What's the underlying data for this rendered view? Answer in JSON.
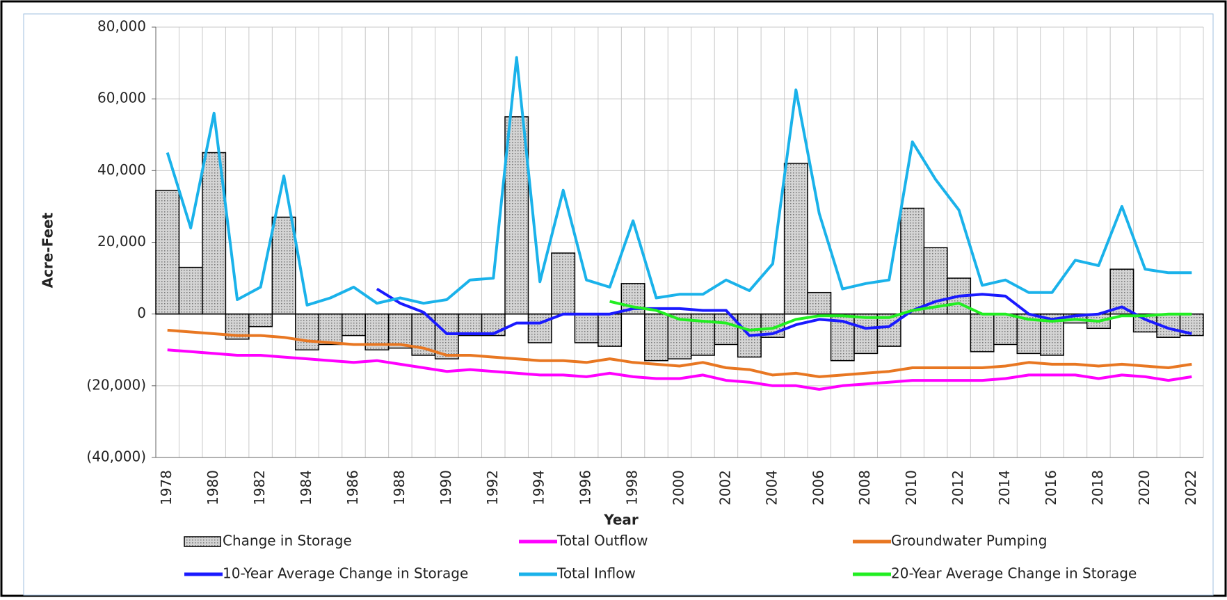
{
  "chart_data": {
    "type": "bar",
    "y_label": "Acre-Feet",
    "x_label": "Year",
    "categories": [
      "1978",
      null,
      "1980",
      null,
      "1982",
      null,
      "1984",
      null,
      "1986",
      null,
      "1988",
      null,
      "1990",
      null,
      "1992",
      null,
      "1994",
      null,
      "1996",
      null,
      "1998",
      null,
      "2000",
      null,
      "2002",
      null,
      "2004",
      null,
      "2006",
      null,
      "2008",
      null,
      "2010",
      null,
      "2012",
      null,
      "2014",
      null,
      "2016",
      null,
      "2018",
      null,
      "2020",
      null,
      "2022"
    ],
    "ylim": [
      -40000,
      80000
    ],
    "yticks": [
      {
        "value": -40000,
        "label": "(40,000)"
      },
      {
        "value": -20000,
        "label": "(20,000)"
      },
      0,
      {
        "value": 20000,
        "label": "20,000"
      },
      {
        "value": 40000,
        "label": "40,000"
      },
      {
        "value": 60000,
        "label": "60,000"
      },
      {
        "value": 80000,
        "label": "80,000"
      }
    ],
    "grid": true,
    "series": [
      {
        "name": "Change in Storage",
        "type": "bar",
        "color": "#c0c0c0",
        "values": [
          34500,
          13000,
          45000,
          -7000,
          -3500,
          27000,
          -10000,
          -8500,
          -6000,
          -10000,
          -9500,
          -11500,
          -12500,
          -6000,
          -6000,
          55000,
          -8000,
          17000,
          -8000,
          -9000,
          8500,
          -13000,
          -12500,
          -11500,
          -8500,
          -12000,
          -6500,
          42000,
          6000,
          -13000,
          -11000,
          -9000,
          29500,
          18500,
          10000,
          -10500,
          -8500,
          -11000,
          -11500,
          -2500,
          -4000,
          12500,
          -5000,
          -6500,
          -6000
        ]
      },
      {
        "name": "Total Outflow",
        "type": "line",
        "color": "#ff00ff",
        "values": [
          -10000,
          -10500,
          -11000,
          -11500,
          -11500,
          -12000,
          -12500,
          -13000,
          -13500,
          -13000,
          -14000,
          -15000,
          -16000,
          -15500,
          -16000,
          -16500,
          -17000,
          -17000,
          -17500,
          -16500,
          -17500,
          -18000,
          -18000,
          -17000,
          -18500,
          -19000,
          -20000,
          -20000,
          -21000,
          -20000,
          -19500,
          -19000,
          -18500,
          -18500,
          -18500,
          -18500,
          -18000,
          -17000,
          -17000,
          -17000,
          -18000,
          -17000,
          -17500,
          -18500,
          -17500
        ]
      },
      {
        "name": "Groundwater Pumping",
        "type": "line",
        "color": "#e87722",
        "values": [
          -4500,
          -5000,
          -5500,
          -6000,
          -6000,
          -6500,
          -7500,
          -8000,
          -8500,
          -8500,
          -8500,
          -9500,
          -11500,
          -11500,
          -12000,
          -12500,
          -13000,
          -13000,
          -13500,
          -12500,
          -13500,
          -14000,
          -14500,
          -13500,
          -15000,
          -15500,
          -17000,
          -16500,
          -17500,
          -17000,
          -16500,
          -16000,
          -15000,
          -15000,
          -15000,
          -15000,
          -14500,
          -13500,
          -14000,
          -14000,
          -14500,
          -14000,
          -14500,
          -15000,
          -14000
        ]
      },
      {
        "name": "10-Year Average Change in Storage",
        "type": "line",
        "color": "#1a1aff",
        "values": [
          null,
          null,
          null,
          null,
          null,
          null,
          null,
          null,
          null,
          7000,
          3000,
          500,
          -5500,
          -5500,
          -5500,
          -2500,
          -2500,
          0,
          0,
          0,
          1500,
          1500,
          1500,
          1000,
          1000,
          -6000,
          -5500,
          -3000,
          -1500,
          -2000,
          -4000,
          -3500,
          1000,
          3500,
          5000,
          5500,
          5000,
          0,
          -1500,
          -500,
          0,
          2000,
          -1500,
          -4000,
          -5500
        ]
      },
      {
        "name": "Total Inflow",
        "type": "line",
        "color": "#1ab2ea",
        "values": [
          45000,
          24000,
          56000,
          4000,
          7500,
          38500,
          2500,
          4500,
          7500,
          3000,
          4500,
          3000,
          4000,
          9500,
          10000,
          71500,
          9000,
          34500,
          9500,
          7500,
          26000,
          4500,
          5500,
          5500,
          9500,
          6500,
          14000,
          62500,
          28000,
          7000,
          8500,
          9500,
          48000,
          37500,
          29000,
          8000,
          9500,
          6000,
          6000,
          15000,
          13500,
          30000,
          12500,
          11500,
          11500
        ]
      },
      {
        "name": "20-Year Average Change in Storage",
        "type": "line",
        "color": "#22ee22",
        "values": [
          null,
          null,
          null,
          null,
          null,
          null,
          null,
          null,
          null,
          null,
          null,
          null,
          null,
          null,
          null,
          null,
          null,
          null,
          null,
          3500,
          2000,
          1000,
          -1500,
          -2000,
          -2500,
          -4500,
          -4000,
          -1500,
          -500,
          -500,
          -1000,
          -1000,
          1000,
          2000,
          3000,
          0,
          0,
          -1500,
          -2000,
          -1500,
          -2000,
          -500,
          -500,
          0,
          0
        ]
      }
    ]
  }
}
